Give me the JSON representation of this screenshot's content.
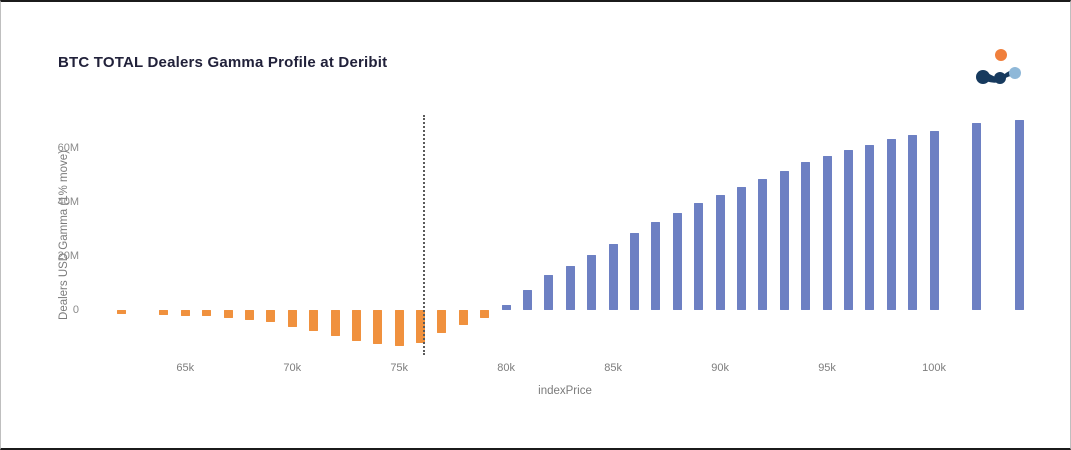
{
  "chart_data": {
    "type": "bar",
    "title": "BTC TOTAL Dealers Gamma Profile at Deribit",
    "xlabel": "indexPrice",
    "ylabel": "Dealers USD Gamma (1% move)",
    "x_unit_suffix": "k",
    "y_unit_suffix": "M",
    "xlim": [
      60.5,
      105
    ],
    "ylim": [
      -16.5,
      72
    ],
    "grid": false,
    "legend": "none",
    "x_ticks": [
      65,
      70,
      75,
      80,
      85,
      90,
      95,
      100
    ],
    "x_tick_labels": [
      "65k",
      "70k",
      "75k",
      "80k",
      "85k",
      "90k",
      "95k",
      "100k"
    ],
    "y_ticks": [
      0,
      20,
      40,
      60
    ],
    "y_tick_labels": [
      "0",
      "20M",
      "40M",
      "60M"
    ],
    "current_price_line_x": 76.1,
    "colors": {
      "positive_bar": "#6d80c3",
      "negative_bar": "#f0913e",
      "dotted_line": "#5a5a5a",
      "title_text": "#21213a",
      "axis_text": "#7b7b7b"
    },
    "bars": [
      {
        "x": 62,
        "y": -1.5
      },
      {
        "x": 64,
        "y": -1.8
      },
      {
        "x": 65,
        "y": -2
      },
      {
        "x": 66,
        "y": -2.3
      },
      {
        "x": 67,
        "y": -2.8
      },
      {
        "x": 68,
        "y": -3.5
      },
      {
        "x": 69,
        "y": -4.5
      },
      {
        "x": 70,
        "y": -6
      },
      {
        "x": 71,
        "y": -7.5
      },
      {
        "x": 72,
        "y": -9.5
      },
      {
        "x": 73,
        "y": -11.5
      },
      {
        "x": 74,
        "y": -12.5
      },
      {
        "x": 75,
        "y": -13
      },
      {
        "x": 76,
        "y": -12
      },
      {
        "x": 77,
        "y": -8.5
      },
      {
        "x": 78,
        "y": -5.5
      },
      {
        "x": 79,
        "y": -3
      },
      {
        "x": 80,
        "y": 2
      },
      {
        "x": 81,
        "y": 7.5
      },
      {
        "x": 82,
        "y": 13
      },
      {
        "x": 83,
        "y": 16.5
      },
      {
        "x": 84,
        "y": 20.5
      },
      {
        "x": 85,
        "y": 24.5
      },
      {
        "x": 86,
        "y": 28.5
      },
      {
        "x": 87,
        "y": 32.5
      },
      {
        "x": 88,
        "y": 36
      },
      {
        "x": 89,
        "y": 39.5
      },
      {
        "x": 90,
        "y": 42.5
      },
      {
        "x": 91,
        "y": 45.5
      },
      {
        "x": 92,
        "y": 48.5
      },
      {
        "x": 93,
        "y": 51.5
      },
      {
        "x": 94,
        "y": 54.5
      },
      {
        "x": 95,
        "y": 57
      },
      {
        "x": 96,
        "y": 59
      },
      {
        "x": 97,
        "y": 61
      },
      {
        "x": 98,
        "y": 63
      },
      {
        "x": 99,
        "y": 64.5
      },
      {
        "x": 100,
        "y": 66
      },
      {
        "x": 102,
        "y": 69
      },
      {
        "x": 104,
        "y": 70
      }
    ]
  },
  "logo": {
    "name": "brand-logo",
    "dot_orange": "#f07f3c",
    "dot_dark": "#173a5e",
    "dot_light": "#8fb8d8"
  }
}
